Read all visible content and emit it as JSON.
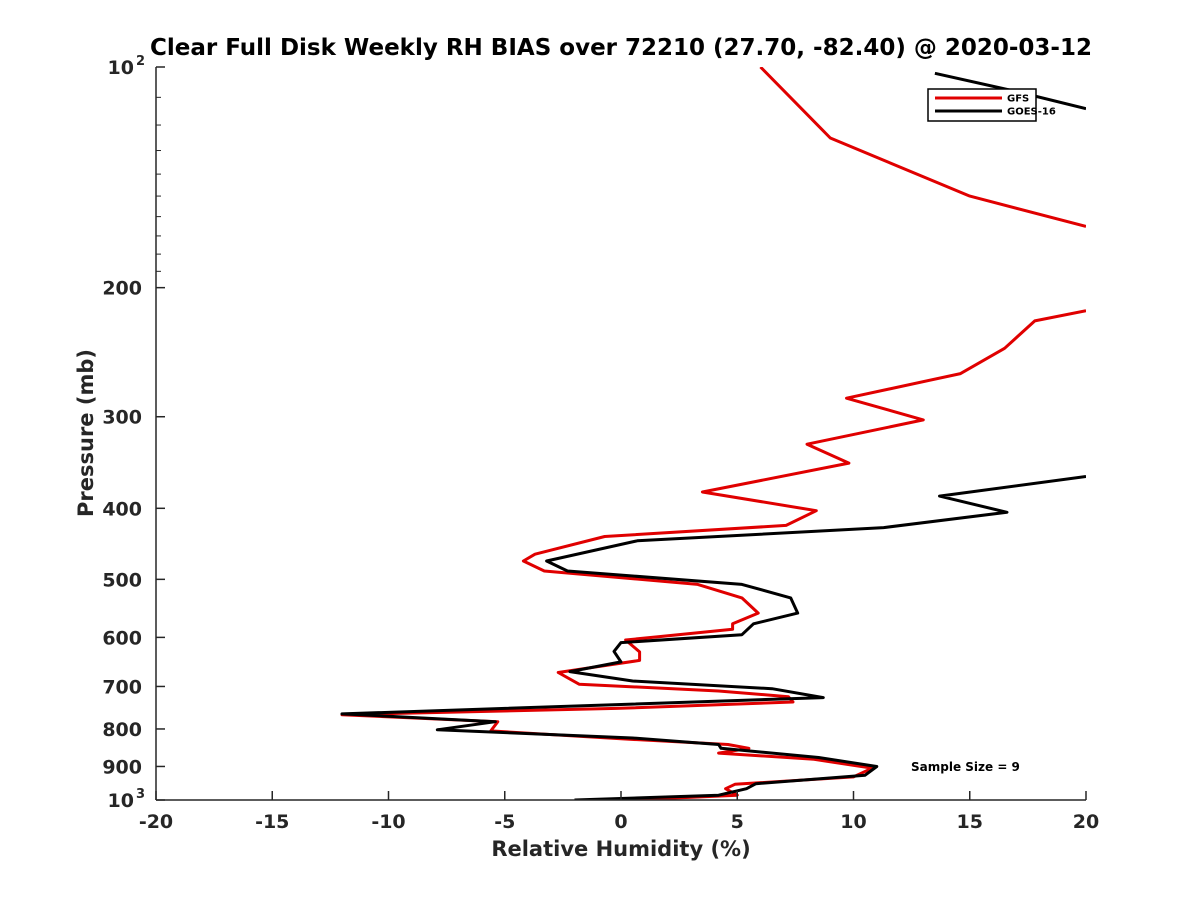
{
  "chart_data": {
    "type": "line",
    "title": "Clear Full Disk Weekly RH BIAS over 72210 (27.70, -82.40) @ 2020-03-12",
    "xlabel": "Relative Humidity (%)",
    "ylabel": "Pressure (mb)",
    "xlim": [
      -20,
      20
    ],
    "ylim": [
      100,
      1000
    ],
    "y_scale": "log",
    "y_reversed": true,
    "grid": false,
    "legend_position": "top-right",
    "x_ticks": [
      "-20",
      "-15",
      "-10",
      "-5",
      "0",
      "5",
      "10",
      "15",
      "20"
    ],
    "y_ticks": [
      {
        "value": 100,
        "base": "10",
        "exp": "2"
      },
      {
        "value": 200,
        "base": "200",
        "exp": ""
      },
      {
        "value": 300,
        "base": "300",
        "exp": ""
      },
      {
        "value": 400,
        "base": "400",
        "exp": ""
      },
      {
        "value": 500,
        "base": "500",
        "exp": ""
      },
      {
        "value": 600,
        "base": "600",
        "exp": ""
      },
      {
        "value": 700,
        "base": "700",
        "exp": ""
      },
      {
        "value": 800,
        "base": "800",
        "exp": ""
      },
      {
        "value": 900,
        "base": "900",
        "exp": ""
      },
      {
        "value": 1000,
        "base": "10",
        "exp": "3"
      }
    ],
    "annotation": "Sample Size = 9",
    "series": [
      {
        "name": "GFS",
        "color": "#e00000",
        "segments": [
          [
            [
              6,
              100
            ],
            [
              9,
              125
            ],
            [
              15,
              150
            ],
            [
              20,
              165
            ]
          ],
          [
            [
              20,
              215
            ],
            [
              17.8,
              222
            ],
            [
              16.5,
              242
            ],
            [
              14.6,
              262
            ],
            [
              9.7,
              283
            ],
            [
              13,
              303
            ],
            [
              8,
              327
            ],
            [
              9.8,
              347
            ],
            [
              3.5,
              380
            ],
            [
              8.4,
              403
            ],
            [
              7.1,
              422
            ],
            [
              -0.7,
              437
            ],
            [
              -3.7,
              462
            ],
            [
              -4.2,
              472
            ],
            [
              -3.3,
              487
            ],
            [
              3.3,
              508
            ],
            [
              5.2,
              530
            ],
            [
              5.9,
              556
            ],
            [
              4.8,
              575
            ],
            [
              4.8,
              585
            ],
            [
              0.2,
              605
            ],
            [
              0.8,
              628
            ],
            [
              0.8,
              645
            ],
            [
              -2.7,
              670
            ],
            [
              -1.8,
              695
            ],
            [
              4.2,
              710
            ],
            [
              7.2,
              723
            ],
            [
              7.4,
              735
            ],
            [
              -0.2,
              750
            ],
            [
              -12,
              765
            ],
            [
              -5.3,
              782
            ],
            [
              -5.6,
              805
            ],
            [
              0,
              825
            ],
            [
              4.6,
              840
            ],
            [
              5.5,
              850
            ],
            [
              4.2,
              863
            ],
            [
              8.3,
              880
            ],
            [
              10.8,
              905
            ],
            [
              10,
              930
            ],
            [
              4.9,
              952
            ],
            [
              4.5,
              965
            ],
            [
              5,
              985
            ],
            [
              0.4,
              1000
            ]
          ]
        ]
      },
      {
        "name": "GOES-16",
        "color": "#000000",
        "segments": [
          [
            [
              13.5,
              102
            ],
            [
              17,
              108
            ],
            [
              20,
              114
            ]
          ],
          [
            [
              20,
              362
            ],
            [
              13.7,
              385
            ],
            [
              16.6,
              405
            ],
            [
              11.3,
              425
            ],
            [
              0.7,
              443
            ],
            [
              -3.2,
              472
            ],
            [
              -2.3,
              487
            ],
            [
              5.2,
              508
            ],
            [
              7.3,
              530
            ],
            [
              7.6,
              556
            ],
            [
              5.7,
              575
            ],
            [
              5.2,
              595
            ],
            [
              0,
              610
            ],
            [
              -0.3,
              627
            ],
            [
              0,
              648
            ],
            [
              -2.2,
              668
            ],
            [
              0.5,
              688
            ],
            [
              6.5,
              705
            ],
            [
              8.7,
              725
            ],
            [
              -12,
              763
            ],
            [
              -5.4,
              782
            ],
            [
              -7.9,
              802
            ],
            [
              0.5,
              823
            ],
            [
              4.2,
              840
            ],
            [
              4.3,
              850
            ],
            [
              8.5,
              875
            ],
            [
              11,
              900
            ],
            [
              10.5,
              925
            ],
            [
              5.8,
              950
            ],
            [
              5.4,
              965
            ],
            [
              4.2,
              985
            ],
            [
              -2,
              1000
            ]
          ]
        ]
      }
    ]
  }
}
